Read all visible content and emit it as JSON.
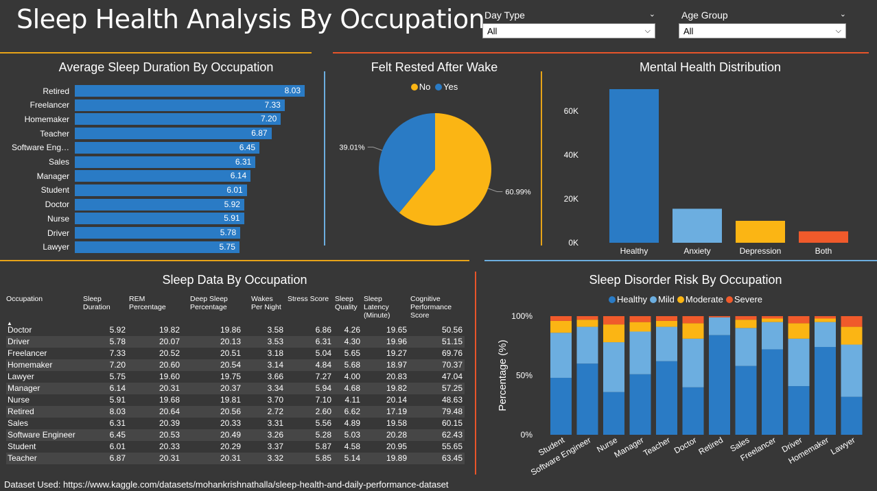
{
  "title": "Sleep Health Analysis By Occupation",
  "slicers": [
    {
      "label": "Day Type",
      "value": "All"
    },
    {
      "label": "Age Group",
      "value": "All"
    }
  ],
  "colors": {
    "blue": "#2A7BC5",
    "lightblue": "#6CAEE0",
    "yellow": "#FBB514",
    "red": "#F05A2B",
    "gold_rule": "#E8A418",
    "red_rule": "#E8542A",
    "blue_rule": "#6CAEE0"
  },
  "footer": "Dataset Used: https://www.kaggle.com/datasets/mohankrishnathalla/sleep-health-and-daily-performance-dataset",
  "chart_data": [
    {
      "id": "avg_sleep",
      "type": "bar",
      "orientation": "horizontal",
      "title": "Average Sleep Duration By Occupation",
      "categories": [
        "Retired",
        "Freelancer",
        "Homemaker",
        "Teacher",
        "Software Eng…",
        "Sales",
        "Manager",
        "Student",
        "Doctor",
        "Nurse",
        "Driver",
        "Lawyer"
      ],
      "values": [
        8.03,
        7.33,
        7.2,
        6.87,
        6.45,
        6.31,
        6.14,
        6.01,
        5.92,
        5.91,
        5.78,
        5.75
      ],
      "labels": [
        "8.03",
        "7.33",
        "7.20",
        "6.87",
        "6.45",
        "6.31",
        "6.14",
        "6.01",
        "5.92",
        "5.91",
        "5.78",
        "5.75"
      ],
      "xlim": [
        0,
        8.03
      ]
    },
    {
      "id": "felt_rested",
      "type": "pie",
      "title": "Felt Rested After Wake",
      "legend": [
        {
          "name": "No",
          "color": "#FBB514"
        },
        {
          "name": "Yes",
          "color": "#2A7BC5"
        }
      ],
      "slices": [
        {
          "name": "No",
          "value": 60.99,
          "label": "60.99%",
          "color": "#FBB514"
        },
        {
          "name": "Yes",
          "value": 39.01,
          "label": "39.01%",
          "color": "#2A7BC5"
        }
      ]
    },
    {
      "id": "mental_health",
      "type": "bar",
      "title": "Mental Health Distribution",
      "categories": [
        "Healthy",
        "Anxiety",
        "Depression",
        "Both"
      ],
      "values": [
        70000,
        15500,
        10000,
        5200
      ],
      "colors": [
        "#2A7BC5",
        "#6CAEE0",
        "#FBB514",
        "#F05A2B"
      ],
      "yticks": [
        "0K",
        "20K",
        "40K",
        "60K"
      ],
      "ylim": [
        0,
        70000
      ]
    },
    {
      "id": "disorder_risk",
      "type": "bar",
      "stacked": true,
      "title": "Sleep Disorder Risk By Occupation",
      "ylabel": "Percentage (%)",
      "yticks": [
        "0%",
        "50%",
        "100%"
      ],
      "ylim": [
        0,
        100
      ],
      "categories": [
        "Student",
        "Software Engineer",
        "Nurse",
        "Manager",
        "Teacher",
        "Doctor",
        "Retired",
        "Sales",
        "Freelancer",
        "Driver",
        "Homemaker",
        "Lawyer"
      ],
      "series": [
        {
          "name": "Healthy",
          "color": "#2A7BC5",
          "values": [
            48,
            60,
            36,
            51,
            62,
            40,
            84,
            58,
            72,
            41,
            74,
            32
          ]
        },
        {
          "name": "Mild",
          "color": "#6CAEE0",
          "values": [
            38,
            31,
            42,
            36,
            29,
            41,
            15,
            32,
            23,
            40,
            21,
            44
          ]
        },
        {
          "name": "Moderate",
          "color": "#FBB514",
          "values": [
            10,
            6,
            15,
            8,
            5,
            13,
            0,
            7,
            3,
            13,
            3,
            15
          ]
        },
        {
          "name": "Severe",
          "color": "#F05A2B",
          "values": [
            4,
            3,
            7,
            5,
            4,
            6,
            1,
            3,
            2,
            6,
            2,
            9
          ]
        }
      ]
    }
  ],
  "table": {
    "title": "Sleep Data By Occupation",
    "headers": [
      "Occupation",
      "Sleep Duration",
      "REM Percentage",
      "Deep Sleep Percentage",
      "Wakes Per Night",
      "Stress Score",
      "Sleep Quality",
      "Sleep Latency (Minute)",
      "Cognitive Performance Score"
    ],
    "rows": [
      [
        "Doctor",
        "5.92",
        "19.82",
        "19.86",
        "3.58",
        "6.86",
        "4.26",
        "19.65",
        "50.56"
      ],
      [
        "Driver",
        "5.78",
        "20.07",
        "20.13",
        "3.53",
        "6.31",
        "4.30",
        "19.96",
        "51.15"
      ],
      [
        "Freelancer",
        "7.33",
        "20.52",
        "20.51",
        "3.18",
        "5.04",
        "5.65",
        "19.27",
        "69.76"
      ],
      [
        "Homemaker",
        "7.20",
        "20.60",
        "20.54",
        "3.14",
        "4.84",
        "5.68",
        "18.97",
        "70.37"
      ],
      [
        "Lawyer",
        "5.75",
        "19.60",
        "19.75",
        "3.66",
        "7.27",
        "4.00",
        "20.83",
        "47.04"
      ],
      [
        "Manager",
        "6.14",
        "20.31",
        "20.37",
        "3.34",
        "5.94",
        "4.68",
        "19.82",
        "57.25"
      ],
      [
        "Nurse",
        "5.91",
        "19.68",
        "19.81",
        "3.70",
        "7.10",
        "4.11",
        "20.14",
        "48.63"
      ],
      [
        "Retired",
        "8.03",
        "20.64",
        "20.56",
        "2.72",
        "2.60",
        "6.62",
        "17.19",
        "79.48"
      ],
      [
        "Sales",
        "6.31",
        "20.39",
        "20.33",
        "3.31",
        "5.56",
        "4.89",
        "19.58",
        "60.15"
      ],
      [
        "Software Engineer",
        "6.45",
        "20.53",
        "20.49",
        "3.26",
        "5.28",
        "5.03",
        "20.28",
        "62.43"
      ],
      [
        "Student",
        "6.01",
        "20.33",
        "20.29",
        "3.37",
        "5.87",
        "4.58",
        "20.95",
        "55.65"
      ],
      [
        "Teacher",
        "6.87",
        "20.31",
        "20.31",
        "3.32",
        "5.85",
        "5.14",
        "19.89",
        "63.45"
      ]
    ]
  }
}
